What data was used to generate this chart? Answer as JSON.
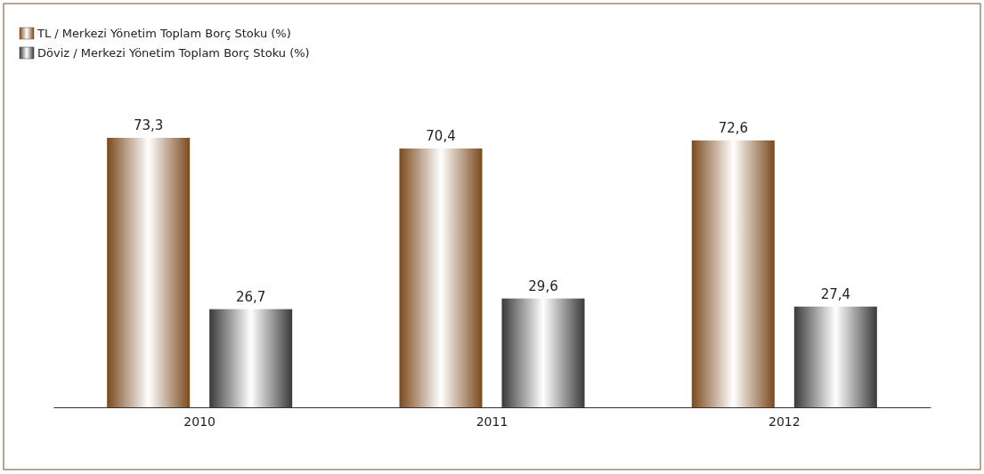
{
  "chart_data": {
    "type": "bar",
    "categories": [
      "2010",
      "2011",
      "2012"
    ],
    "series": [
      {
        "name": "TL / Merkezi Yönetim Toplam Borç Stoku (%)",
        "color": "#7b4a1e",
        "values": [
          73.3,
          70.4,
          72.6
        ],
        "value_labels": [
          "73,3",
          "70,4",
          "72,6"
        ]
      },
      {
        "name": "Döviz / Merkezi Yönetim Toplam Borç Stoku (%)",
        "color": "#3a3a3a",
        "values": [
          26.7,
          29.6,
          27.4
        ],
        "value_labels": [
          "26,7",
          "29,6",
          "27,4"
        ]
      }
    ],
    "legend": "top left",
    "grid": false
  }
}
